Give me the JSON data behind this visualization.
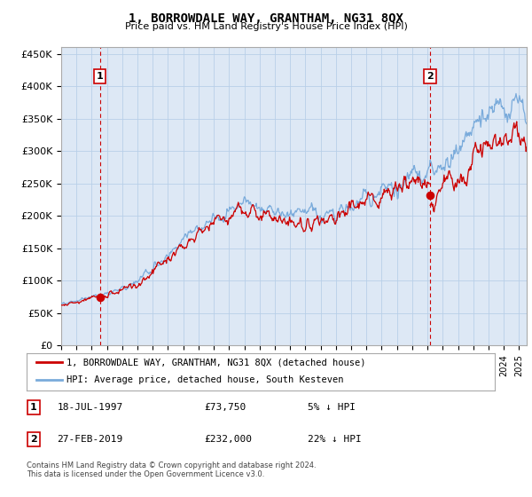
{
  "title": "1, BORROWDALE WAY, GRANTHAM, NG31 8QX",
  "subtitle": "Price paid vs. HM Land Registry's House Price Index (HPI)",
  "ylabel_ticks": [
    "£0",
    "£50K",
    "£100K",
    "£150K",
    "£200K",
    "£250K",
    "£300K",
    "£350K",
    "£400K",
    "£450K"
  ],
  "ytick_values": [
    0,
    50000,
    100000,
    150000,
    200000,
    250000,
    300000,
    350000,
    400000,
    450000
  ],
  "ylim": [
    0,
    460000
  ],
  "xlim_start": 1995.0,
  "xlim_end": 2025.5,
  "sale1_year": 1997.54,
  "sale1_price": 73750,
  "sale1_label": "1",
  "sale2_year": 2019.16,
  "sale2_price": 232000,
  "sale2_label": "2",
  "legend_line1": "1, BORROWDALE WAY, GRANTHAM, NG31 8QX (detached house)",
  "legend_line2": "HPI: Average price, detached house, South Kesteven",
  "ann1_date": "18-JUL-1997",
  "ann1_price": "£73,750",
  "ann1_hpi": "5% ↓ HPI",
  "ann2_date": "27-FEB-2019",
  "ann2_price": "£232,000",
  "ann2_hpi": "22% ↓ HPI",
  "footer": "Contains HM Land Registry data © Crown copyright and database right 2024.\nThis data is licensed under the Open Government Licence v3.0.",
  "hpi_color": "#7aabdb",
  "price_color": "#cc0000",
  "bg_color": "#dde8f5",
  "plot_bg": "#ffffff",
  "grid_color": "#b8cfe8",
  "dashed_color": "#cc0000",
  "label_box_color": "#cc0000"
}
